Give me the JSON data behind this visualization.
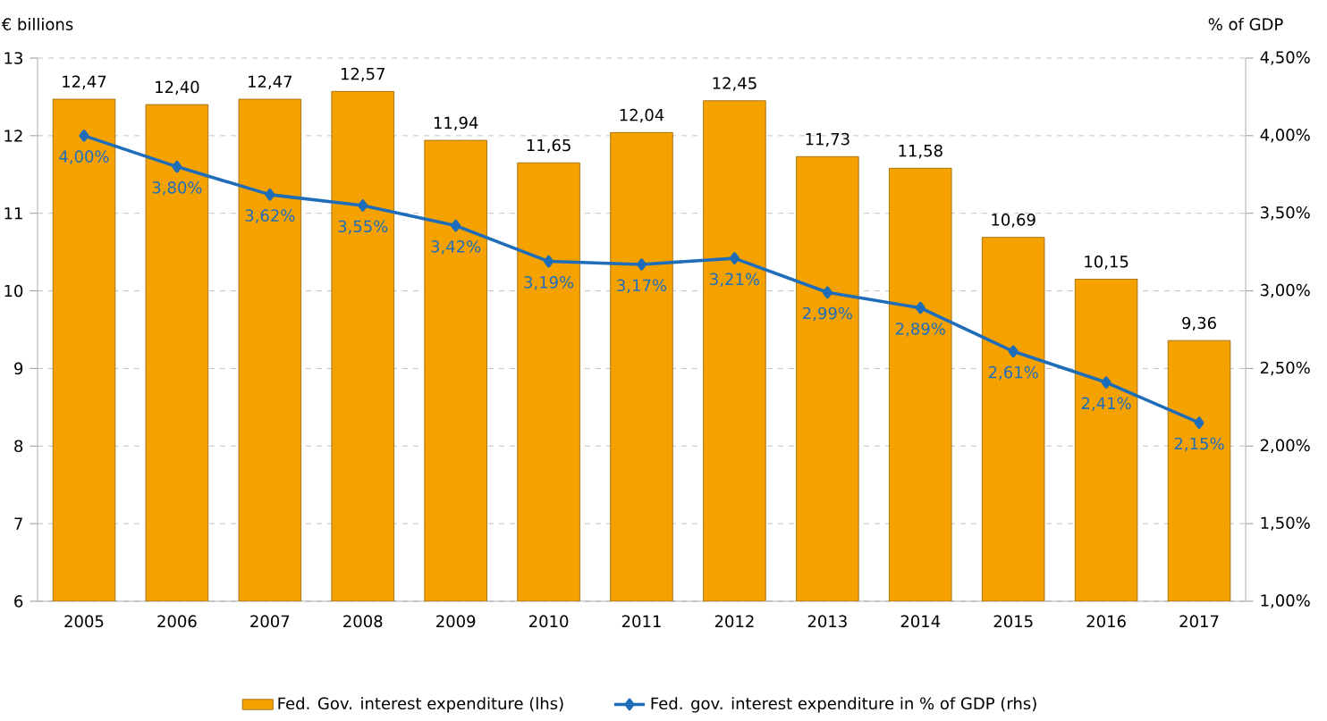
{
  "chart_data": {
    "type": "bar",
    "ylabel": "€ billions",
    "y2label": "% of GDP",
    "categories": [
      "2005",
      "2006",
      "2007",
      "2008",
      "2009",
      "2010",
      "2011",
      "2012",
      "2013",
      "2014",
      "2015",
      "2016",
      "2017"
    ],
    "series": [
      {
        "name": "Fed. Gov. interest expenditure (lhs)",
        "color": "#f5a200",
        "values": [
          12.47,
          12.4,
          12.47,
          12.57,
          11.94,
          11.65,
          12.04,
          12.45,
          11.73,
          11.58,
          10.69,
          10.15,
          9.36
        ],
        "value_labels": [
          "12,47",
          "12,40",
          "12,47",
          "12,57",
          "11,94",
          "11,65",
          "12,04",
          "12,45",
          "11,73",
          "11,58",
          "10,69",
          "10,15",
          "9,36"
        ]
      },
      {
        "name": "Fed. gov. interest expenditure in % of GDP (rhs)",
        "type": "line",
        "axis": "y2",
        "color": "#1f6db8",
        "marker": "diamond",
        "values": [
          4.0,
          3.8,
          3.62,
          3.55,
          3.42,
          3.19,
          3.17,
          3.21,
          2.99,
          2.89,
          2.61,
          2.41,
          2.15
        ],
        "value_labels": [
          "4,00%",
          "3,80%",
          "3,62%",
          "3,55%",
          "3,42%",
          "3,19%",
          "3,17%",
          "3,21%",
          "2,99%",
          "2,89%",
          "2,61%",
          "2,41%",
          "2,15%"
        ]
      }
    ],
    "ylim": [
      6,
      13
    ],
    "yticks": [
      6,
      7,
      8,
      9,
      10,
      11,
      12,
      13
    ],
    "y2lim": [
      1,
      4.5
    ],
    "y2ticks": [
      {
        "value": 1,
        "label": "1,00%"
      },
      {
        "value": 1.5,
        "label": "1,50%"
      },
      {
        "value": 2,
        "label": "2,00%"
      },
      {
        "value": 2.5,
        "label": "2,50%"
      },
      {
        "value": 3,
        "label": "3,00%"
      },
      {
        "value": 3.5,
        "label": "3,50%"
      },
      {
        "value": 4,
        "label": "4,00%"
      },
      {
        "value": 4.5,
        "label": "4,50%"
      }
    ],
    "grid": "y",
    "legend": "bottom"
  }
}
